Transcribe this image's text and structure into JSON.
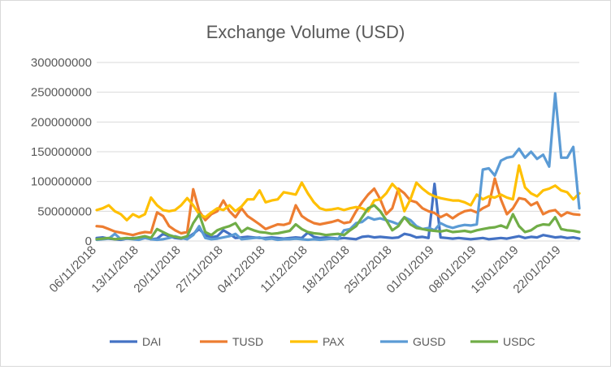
{
  "chart_data": {
    "type": "line",
    "title": "Exchange Volume (USD)",
    "xlabel": "",
    "ylabel": "",
    "ylim": [
      0,
      300000000
    ],
    "yticks": [
      "0",
      "50000000",
      "100000000",
      "150000000",
      "200000000",
      "250000000",
      "300000000"
    ],
    "xticks": [
      "06/11/2018",
      "13/11/2018",
      "20/11/2018",
      "27/11/2018",
      "04/12/2018",
      "11/12/2018",
      "18/12/2018",
      "25/12/2018",
      "01/01/2019",
      "08/01/2019",
      "15/01/2019",
      "22/01/2019"
    ],
    "grid": true,
    "legend_position": "bottom",
    "x": [
      "06/11/2018",
      "07/11/2018",
      "08/11/2018",
      "09/11/2018",
      "10/11/2018",
      "11/11/2018",
      "12/11/2018",
      "13/11/2018",
      "14/11/2018",
      "15/11/2018",
      "16/11/2018",
      "17/11/2018",
      "18/11/2018",
      "19/11/2018",
      "20/11/2018",
      "21/11/2018",
      "22/11/2018",
      "23/11/2018",
      "24/11/2018",
      "25/11/2018",
      "26/11/2018",
      "27/11/2018",
      "28/11/2018",
      "29/11/2018",
      "30/11/2018",
      "01/12/2018",
      "02/12/2018",
      "03/12/2018",
      "04/12/2018",
      "05/12/2018",
      "06/12/2018",
      "07/12/2018",
      "08/12/2018",
      "09/12/2018",
      "10/12/2018",
      "11/12/2018",
      "12/12/2018",
      "13/12/2018",
      "14/12/2018",
      "15/12/2018",
      "16/12/2018",
      "17/12/2018",
      "18/12/2018",
      "19/12/2018",
      "20/12/2018",
      "21/12/2018",
      "22/12/2018",
      "23/12/2018",
      "24/12/2018",
      "25/12/2018",
      "26/12/2018",
      "27/12/2018",
      "28/12/2018",
      "29/12/2018",
      "30/12/2018",
      "31/12/2018",
      "01/01/2019",
      "02/01/2019",
      "03/01/2019",
      "04/01/2019",
      "05/01/2019",
      "06/01/2019",
      "07/01/2019",
      "08/01/2019",
      "09/01/2019",
      "10/01/2019",
      "11/01/2019",
      "12/01/2019",
      "13/01/2019",
      "14/01/2019",
      "15/01/2019",
      "16/01/2019",
      "17/01/2019",
      "18/01/2019",
      "19/01/2019",
      "20/01/2019",
      "21/01/2019",
      "22/01/2019",
      "23/01/2019",
      "24/01/2019",
      "25/01/2019"
    ],
    "series": [
      {
        "name": "DAI",
        "color": "#4472C4",
        "values": [
          5000000,
          6000000,
          4000000,
          3000000,
          2000000,
          4000000,
          5000000,
          5000000,
          6000000,
          3000000,
          4000000,
          12000000,
          8000000,
          5000000,
          4000000,
          5000000,
          12000000,
          20000000,
          10000000,
          6000000,
          8000000,
          18000000,
          12000000,
          5000000,
          6000000,
          7000000,
          6000000,
          5000000,
          5000000,
          6000000,
          5000000,
          4000000,
          5000000,
          6000000,
          5000000,
          14000000,
          7000000,
          5000000,
          6000000,
          5000000,
          4000000,
          5000000,
          4000000,
          3000000,
          7000000,
          8000000,
          6000000,
          7000000,
          6000000,
          5000000,
          6000000,
          12000000,
          10000000,
          6000000,
          7000000,
          5000000,
          96000000,
          6000000,
          5000000,
          4000000,
          5000000,
          4000000,
          3000000,
          4000000,
          5000000,
          3000000,
          4000000,
          5000000,
          4000000,
          6000000,
          8000000,
          5000000,
          7000000,
          6000000,
          10000000,
          8000000,
          6000000,
          7000000,
          5000000,
          6000000,
          4000000
        ]
      },
      {
        "name": "TUSD",
        "color": "#ED7D31",
        "values": [
          25000000,
          24000000,
          20000000,
          16000000,
          14000000,
          12000000,
          10000000,
          13000000,
          15000000,
          14000000,
          48000000,
          42000000,
          25000000,
          18000000,
          13000000,
          15000000,
          87000000,
          50000000,
          35000000,
          45000000,
          50000000,
          68000000,
          50000000,
          40000000,
          55000000,
          42000000,
          35000000,
          28000000,
          20000000,
          24000000,
          28000000,
          27000000,
          30000000,
          60000000,
          42000000,
          35000000,
          30000000,
          28000000,
          30000000,
          32000000,
          35000000,
          30000000,
          32000000,
          50000000,
          65000000,
          78000000,
          88000000,
          70000000,
          45000000,
          55000000,
          88000000,
          80000000,
          68000000,
          65000000,
          55000000,
          50000000,
          47000000,
          40000000,
          45000000,
          38000000,
          45000000,
          50000000,
          52000000,
          48000000,
          55000000,
          60000000,
          105000000,
          70000000,
          45000000,
          55000000,
          72000000,
          70000000,
          60000000,
          65000000,
          45000000,
          50000000,
          52000000,
          42000000,
          48000000,
          45000000,
          44000000
        ]
      },
      {
        "name": "PAX",
        "color": "#FFC000",
        "values": [
          52000000,
          55000000,
          60000000,
          50000000,
          45000000,
          35000000,
          45000000,
          40000000,
          45000000,
          73000000,
          60000000,
          52000000,
          50000000,
          52000000,
          60000000,
          72000000,
          60000000,
          45000000,
          40000000,
          48000000,
          55000000,
          52000000,
          60000000,
          50000000,
          58000000,
          70000000,
          70000000,
          85000000,
          65000000,
          68000000,
          70000000,
          82000000,
          80000000,
          78000000,
          98000000,
          80000000,
          65000000,
          55000000,
          52000000,
          53000000,
          55000000,
          52000000,
          55000000,
          57000000,
          55000000,
          50000000,
          68000000,
          70000000,
          80000000,
          96000000,
          85000000,
          50000000,
          70000000,
          98000000,
          88000000,
          80000000,
          75000000,
          72000000,
          70000000,
          68000000,
          68000000,
          65000000,
          60000000,
          78000000,
          70000000,
          75000000,
          73000000,
          78000000,
          73000000,
          70000000,
          127000000,
          90000000,
          80000000,
          75000000,
          85000000,
          88000000,
          93000000,
          85000000,
          82000000,
          70000000,
          80000000
        ]
      },
      {
        "name": "GUSD",
        "color": "#5B9BD5",
        "values": [
          2000000,
          3000000,
          4000000,
          12000000,
          3000000,
          4000000,
          3000000,
          2000000,
          5000000,
          3000000,
          2000000,
          3000000,
          5000000,
          8000000,
          5000000,
          3000000,
          10000000,
          25000000,
          5000000,
          3000000,
          4000000,
          6000000,
          8000000,
          12000000,
          3000000,
          4000000,
          5000000,
          6000000,
          3000000,
          4000000,
          2000000,
          3000000,
          3000000,
          4000000,
          3000000,
          2000000,
          3000000,
          2000000,
          3000000,
          4000000,
          3000000,
          18000000,
          20000000,
          30000000,
          32000000,
          40000000,
          36000000,
          38000000,
          35000000,
          32000000,
          28000000,
          40000000,
          35000000,
          25000000,
          20000000,
          22000000,
          18000000,
          30000000,
          25000000,
          22000000,
          25000000,
          27000000,
          26000000,
          28000000,
          120000000,
          122000000,
          110000000,
          135000000,
          140000000,
          142000000,
          155000000,
          140000000,
          150000000,
          138000000,
          145000000,
          125000000,
          248000000,
          140000000,
          140000000,
          158000000,
          55000000
        ]
      },
      {
        "name": "USDC",
        "color": "#70AD47",
        "values": [
          3000000,
          4000000,
          5000000,
          3000000,
          4000000,
          5000000,
          4000000,
          6000000,
          8000000,
          5000000,
          20000000,
          15000000,
          10000000,
          7000000,
          5000000,
          8000000,
          30000000,
          45000000,
          15000000,
          10000000,
          18000000,
          22000000,
          25000000,
          30000000,
          15000000,
          22000000,
          18000000,
          15000000,
          14000000,
          12000000,
          13000000,
          15000000,
          17000000,
          28000000,
          20000000,
          15000000,
          13000000,
          12000000,
          10000000,
          11000000,
          12000000,
          10000000,
          18000000,
          25000000,
          40000000,
          55000000,
          60000000,
          50000000,
          35000000,
          18000000,
          25000000,
          40000000,
          28000000,
          22000000,
          20000000,
          18000000,
          17000000,
          16000000,
          18000000,
          15000000,
          16000000,
          17000000,
          15000000,
          18000000,
          20000000,
          22000000,
          23000000,
          26000000,
          22000000,
          45000000,
          25000000,
          15000000,
          18000000,
          25000000,
          28000000,
          27000000,
          40000000,
          20000000,
          18000000,
          17000000,
          15000000
        ]
      }
    ]
  }
}
